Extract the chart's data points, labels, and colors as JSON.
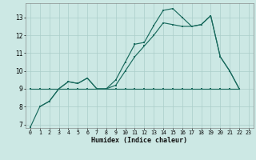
{
  "bg_color": "#cce8e4",
  "grid_color": "#aacec9",
  "line_color": "#1a6b5e",
  "xlabel": "Humidex (Indice chaleur)",
  "xlim": [
    -0.5,
    23.5
  ],
  "ylim": [
    6.8,
    13.8
  ],
  "yticks": [
    7,
    8,
    9,
    10,
    11,
    12,
    13
  ],
  "xticks": [
    0,
    1,
    2,
    3,
    4,
    5,
    6,
    7,
    8,
    9,
    10,
    11,
    12,
    13,
    14,
    15,
    16,
    17,
    18,
    19,
    20,
    21,
    22,
    23
  ],
  "s1_x": [
    0,
    1,
    2,
    3,
    4,
    5,
    6,
    7,
    8,
    9,
    10,
    11,
    12,
    13,
    14,
    15,
    16,
    17,
    18,
    19,
    20,
    21,
    22
  ],
  "s1_y": [
    6.85,
    8.0,
    8.3,
    9.0,
    9.4,
    9.3,
    9.6,
    9.0,
    9.0,
    9.5,
    10.5,
    11.5,
    11.6,
    12.55,
    13.4,
    13.5,
    13.0,
    12.5,
    12.6,
    13.1,
    10.8,
    10.0,
    9.0
  ],
  "s2_x": [
    0,
    1,
    2,
    3,
    4,
    5,
    6,
    7,
    8,
    9,
    10,
    11,
    12,
    13,
    14,
    15,
    16,
    17,
    18,
    19,
    20,
    21,
    22
  ],
  "s2_y": [
    9.0,
    9.0,
    9.0,
    9.0,
    9.0,
    9.0,
    9.0,
    9.0,
    9.0,
    9.0,
    9.0,
    9.0,
    9.0,
    9.0,
    9.0,
    9.0,
    9.0,
    9.0,
    9.0,
    9.0,
    9.0,
    9.0,
    9.0
  ],
  "s3_x": [
    1,
    2,
    3,
    4,
    5,
    6,
    7,
    8,
    9,
    10,
    11,
    12,
    13,
    14,
    15,
    16,
    17,
    18,
    19,
    20,
    21,
    22
  ],
  "s3_y": [
    8.0,
    8.3,
    9.0,
    9.4,
    9.3,
    9.6,
    9.0,
    9.0,
    9.2,
    10.0,
    10.8,
    11.4,
    12.0,
    12.7,
    12.6,
    12.5,
    12.5,
    12.6,
    13.1,
    10.8,
    10.0,
    9.0
  ]
}
